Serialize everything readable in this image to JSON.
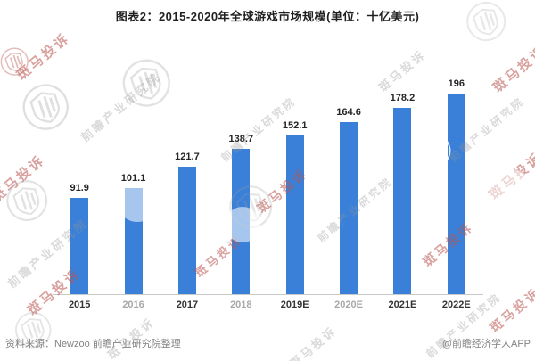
{
  "title": "图表2：2015-2020年全球游戏市场规模(单位：十亿美元)",
  "chart_data": {
    "type": "bar",
    "title": "图表2：2015-2020年全球游戏市场规模(单位：十亿美元)",
    "categories": [
      "2015",
      "2016",
      "2017",
      "2018",
      "2019E",
      "2020E",
      "2021E",
      "2022E"
    ],
    "values": [
      91.9,
      101.1,
      121.7,
      138.7,
      152.1,
      164.6,
      178.2,
      196
    ],
    "xlabel": "",
    "ylabel": "",
    "unit": "十亿美元",
    "ylim": [
      0,
      210
    ],
    "grid": false,
    "legend": false,
    "data_label_position": "above",
    "bar_color": "#3a80d8",
    "axis_line_color": "#c9c9c9",
    "faded_tick_labels": [
      "2016",
      "2018",
      "2020E"
    ]
  },
  "footer": {
    "source": "资料来源：Newzoo 前瞻产业研究院整理",
    "credit": "@前瞻经济学人APP"
  },
  "watermarks": {
    "red_text": "斑马投诉",
    "gray_text": "前瞻产业研究院",
    "shield_icon": "shield-logo",
    "red_color": "rgba(186,84,78,0.55)",
    "gray_color": "rgba(148,148,148,0.35)"
  }
}
